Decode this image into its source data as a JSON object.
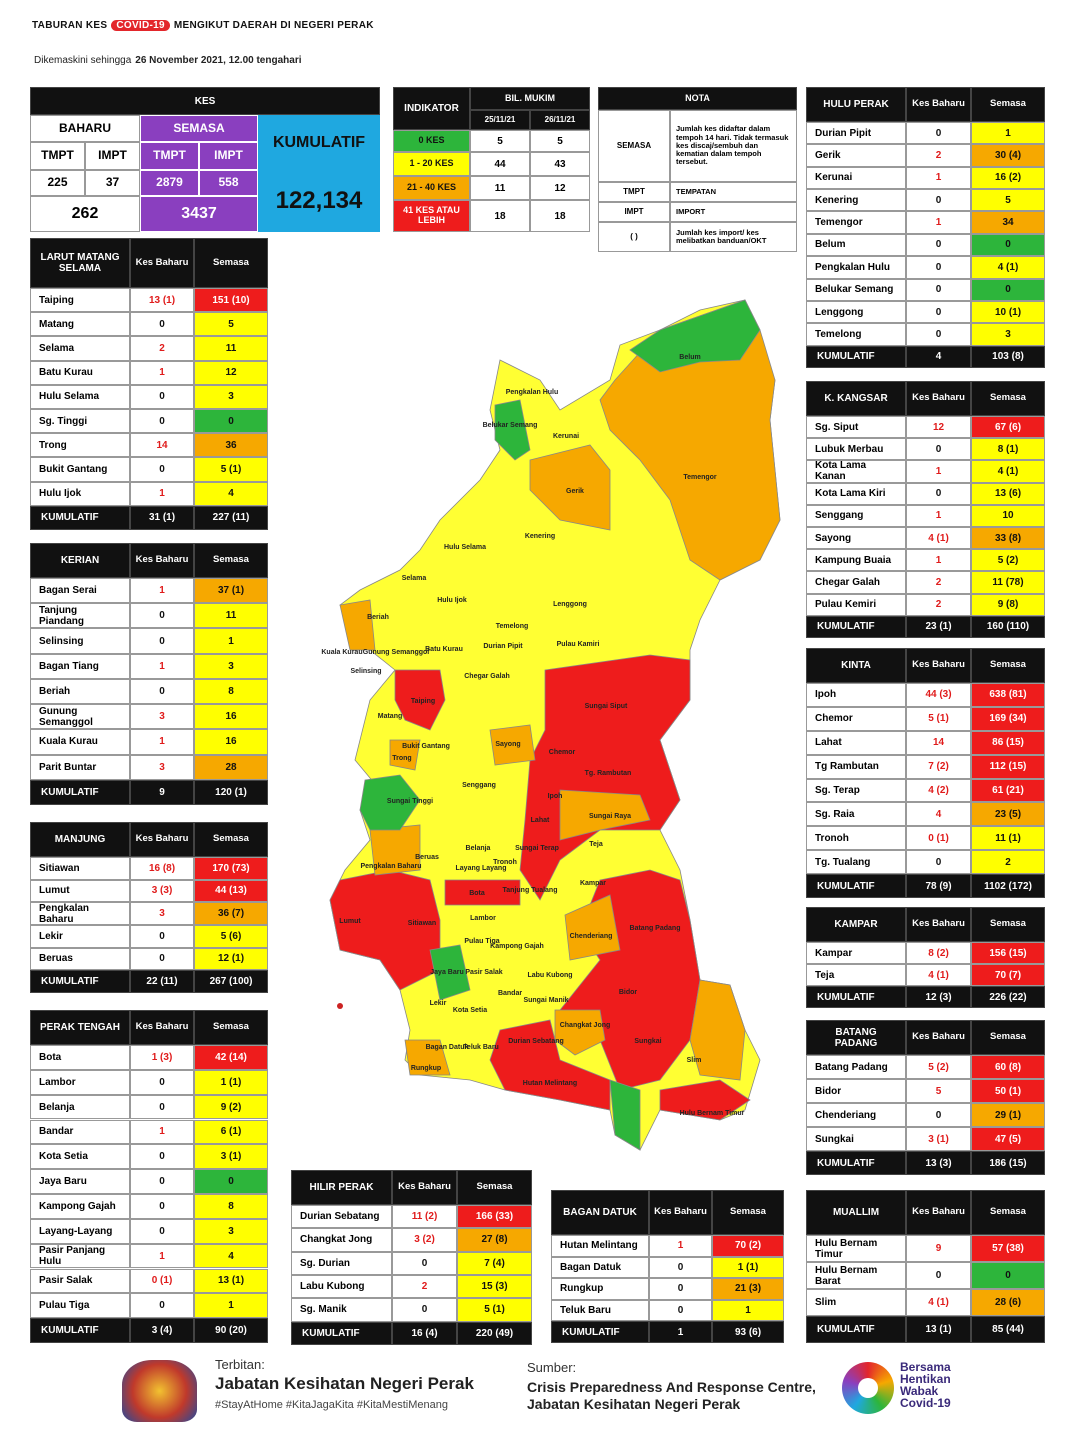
{
  "header": {
    "title": [
      "TABURAN KES",
      "COVID-19",
      "MENGIKUT DAERAH DI NEGERI PERAK"
    ],
    "subtitle": [
      "Dikemaskini sehingga",
      "26 November 2021, 12.00 tengahari"
    ]
  },
  "kes": {
    "title": "KES",
    "baharu": "BAHARU",
    "semasa": "SEMASA",
    "kumulatif": "KUMULATIF",
    "cols": [
      "TMPT",
      "IMPT",
      "TMPT",
      "IMPT"
    ],
    "values": [
      225,
      37,
      2879,
      558
    ],
    "total_baharu": 262,
    "total_semasa": 3437,
    "total_kumulatif": "122,134"
  },
  "indikator": {
    "title": "INDIKATOR",
    "bil": "BIL. MUKIM",
    "dates": [
      "25/11/21",
      "26/11/21"
    ],
    "rows": [
      [
        "0 KES",
        5,
        5,
        "g"
      ],
      [
        "1 - 20 KES",
        44,
        43,
        "y"
      ],
      [
        "21 - 40 KES",
        11,
        12,
        "o"
      ],
      [
        "41 KES ATAU LEBIH",
        18,
        18,
        "r"
      ]
    ]
  },
  "nota": {
    "title": "NOTA",
    "rows": [
      [
        "SEMASA",
        "Jumlah kes didaftar dalam tempoh 14 hari. Tidak termasuk kes discaj/sembuh dan kematian dalam tempoh tersebut."
      ],
      [
        "TMPT",
        "TEMPATAN"
      ],
      [
        "IMPT",
        "IMPORT"
      ],
      [
        "( )",
        "Jumlah kes import/ kes melibatkan banduan/OKT"
      ]
    ]
  },
  "zone_colors": {
    "g": "#2db53b",
    "y": "#ffff00",
    "o": "#f6a800",
    "r": "#ee1c1c"
  },
  "labels": {
    "kes_baharu": "Kes Baharu",
    "semasa": "Semasa",
    "kumulatif": "KUMULATIF"
  },
  "districts": [
    {
      "title": "HULU PERAK",
      "rows": [
        [
          "Durian Pipit",
          0,
          1,
          "y"
        ],
        [
          "Gerik",
          2,
          "30 (4)",
          "o"
        ],
        [
          "Kerunai",
          1,
          "16 (2)",
          "y"
        ],
        [
          "Kenering",
          0,
          5,
          "y"
        ],
        [
          "Temengor",
          1,
          34,
          "o"
        ],
        [
          "Belum",
          0,
          0,
          "g"
        ],
        [
          "Pengkalan Hulu",
          0,
          "4 (1)",
          "y"
        ],
        [
          "Belukar Semang",
          0,
          0,
          "g"
        ],
        [
          "Lenggong",
          0,
          "10 (1)",
          "y"
        ],
        [
          "Temelong",
          0,
          3,
          "y"
        ]
      ],
      "total": [
        4,
        "103 (8)"
      ]
    },
    {
      "title": "LARUT MATANG SELAMA",
      "rows": [
        [
          "Taiping",
          "13 (1)",
          "151 (10)",
          "r"
        ],
        [
          "Matang",
          0,
          5,
          "y"
        ],
        [
          "Selama",
          2,
          11,
          "y"
        ],
        [
          "Batu Kurau",
          1,
          12,
          "y"
        ],
        [
          "Hulu Selama",
          0,
          3,
          "y"
        ],
        [
          "Sg. Tinggi",
          0,
          0,
          "g"
        ],
        [
          "Trong",
          14,
          36,
          "o"
        ],
        [
          "Bukit Gantang",
          0,
          "5 (1)",
          "y"
        ],
        [
          "Hulu Ijok",
          1,
          4,
          "y"
        ]
      ],
      "total": [
        "31 (1)",
        "227 (11)"
      ]
    },
    {
      "title": "KERIAN",
      "rows": [
        [
          "Bagan Serai",
          1,
          "37 (1)",
          "o"
        ],
        [
          "Tanjung Piandang",
          0,
          11,
          "y"
        ],
        [
          "Selinsing",
          0,
          1,
          "y"
        ],
        [
          "Bagan Tiang",
          1,
          3,
          "y"
        ],
        [
          "Beriah",
          0,
          8,
          "y"
        ],
        [
          "Gunung Semanggol",
          3,
          16,
          "y"
        ],
        [
          "Kuala Kurau",
          1,
          16,
          "y"
        ],
        [
          "Parit Buntar",
          3,
          28,
          "o"
        ]
      ],
      "total": [
        9,
        "120 (1)"
      ]
    },
    {
      "title": "MANJUNG",
      "rows": [
        [
          "Sitiawan",
          "16 (8)",
          "170 (73)",
          "r"
        ],
        [
          "Lumut",
          "3 (3)",
          "44 (13)",
          "r"
        ],
        [
          "Pengkalan Baharu",
          3,
          "36 (7)",
          "o"
        ],
        [
          "Lekir",
          0,
          "5 (6)",
          "y"
        ],
        [
          "Beruas",
          0,
          "12 (1)",
          "y"
        ]
      ],
      "total": [
        "22 (11)",
        "267 (100)"
      ]
    },
    {
      "title": "PERAK TENGAH",
      "rows": [
        [
          "Bota",
          "1 (3)",
          "42 (14)",
          "r"
        ],
        [
          "Lambor",
          0,
          "1 (1)",
          "y"
        ],
        [
          "Belanja",
          0,
          "9 (2)",
          "y"
        ],
        [
          "Bandar",
          1,
          "6 (1)",
          "y"
        ],
        [
          "Kota Setia",
          0,
          "3 (1)",
          "y"
        ],
        [
          "Jaya Baru",
          0,
          0,
          "g"
        ],
        [
          "Kampong Gajah",
          0,
          8,
          "y"
        ],
        [
          "Layang-Layang",
          0,
          3,
          "y"
        ],
        [
          "Pasir Panjang Hulu",
          1,
          4,
          "y"
        ],
        [
          "Pasir Salak",
          "0 (1)",
          "13 (1)",
          "y"
        ],
        [
          "Pulau Tiga",
          0,
          1,
          "y"
        ]
      ],
      "total": [
        "3 (4)",
        "90 (20)"
      ]
    },
    {
      "title": "HILIR PERAK",
      "rows": [
        [
          "Durian Sebatang",
          "11 (2)",
          "166 (33)",
          "r"
        ],
        [
          "Changkat Jong",
          "3 (2)",
          "27 (8)",
          "o"
        ],
        [
          "Sg. Durian",
          0,
          "7 (4)",
          "y"
        ],
        [
          "Labu Kubong",
          2,
          "15 (3)",
          "y"
        ],
        [
          "Sg. Manik",
          0,
          "5 (1)",
          "y"
        ]
      ],
      "total": [
        "16 (4)",
        "220 (49)"
      ]
    },
    {
      "title": "BAGAN DATUK",
      "rows": [
        [
          "Hutan Melintang",
          1,
          "70 (2)",
          "r"
        ],
        [
          "Bagan Datuk",
          0,
          "1 (1)",
          "y"
        ],
        [
          "Rungkup",
          0,
          "21 (3)",
          "o"
        ],
        [
          "Teluk Baru",
          0,
          1,
          "y"
        ]
      ],
      "total": [
        1,
        "93 (6)"
      ]
    },
    {
      "title": "K. KANGSAR",
      "rows": [
        [
          "Sg. Siput",
          12,
          "67 (6)",
          "r"
        ],
        [
          "Lubuk Merbau",
          0,
          "8 (1)",
          "y"
        ],
        [
          "Kota Lama Kanan",
          1,
          "4 (1)",
          "y"
        ],
        [
          "Kota Lama Kiri",
          0,
          "13 (6)",
          "y"
        ],
        [
          "Senggang",
          1,
          10,
          "y"
        ],
        [
          "Sayong",
          "4 (1)",
          "33 (8)",
          "o"
        ],
        [
          "Kampung Buaia",
          1,
          "5 (2)",
          "y"
        ],
        [
          "Chegar Galah",
          2,
          "11 (78)",
          "y"
        ],
        [
          "Pulau Kemiri",
          2,
          "9 (8)",
          "y"
        ]
      ],
      "total": [
        "23 (1)",
        "160 (110)"
      ]
    },
    {
      "title": "KINTA",
      "rows": [
        [
          "Ipoh",
          "44 (3)",
          "638 (81)",
          "r"
        ],
        [
          "Chemor",
          "5 (1)",
          "169 (34)",
          "r"
        ],
        [
          "Lahat",
          14,
          "86 (15)",
          "r"
        ],
        [
          "Tg Rambutan",
          "7 (2)",
          "112 (15)",
          "r"
        ],
        [
          "Sg. Terap",
          "4 (2)",
          "61 (21)",
          "r"
        ],
        [
          "Sg. Raia",
          4,
          "23 (5)",
          "o"
        ],
        [
          "Tronoh",
          "0 (1)",
          "11 (1)",
          "y"
        ],
        [
          "Tg. Tualang",
          0,
          2,
          "y"
        ]
      ],
      "total": [
        "78 (9)",
        "1102 (172)"
      ]
    },
    {
      "title": "KAMPAR",
      "rows": [
        [
          "Kampar",
          "8 (2)",
          "156 (15)",
          "r"
        ],
        [
          "Teja",
          "4 (1)",
          "70 (7)",
          "r"
        ]
      ],
      "total": [
        "12 (3)",
        "226 (22)"
      ]
    },
    {
      "title": "BATANG PADANG",
      "rows": [
        [
          "Batang Padang",
          "5 (2)",
          "60 (8)",
          "r"
        ],
        [
          "Bidor",
          5,
          "50 (1)",
          "r"
        ],
        [
          "Chenderiang",
          0,
          "29 (1)",
          "o"
        ],
        [
          "Sungkai",
          "3 (1)",
          "47 (5)",
          "r"
        ]
      ],
      "total": [
        "13 (3)",
        "186 (15)"
      ]
    },
    {
      "title": "MUALLIM",
      "rows": [
        [
          "Hulu Bernam Timur",
          9,
          "57 (38)",
          "r"
        ],
        [
          "Hulu Bernam Barat",
          0,
          0,
          "g"
        ],
        [
          "Slim",
          "4 (1)",
          "28 (6)",
          "o"
        ]
      ],
      "total": [
        "13 (1)",
        "85 (44)"
      ]
    }
  ],
  "map": {
    "labels": [
      "Belum",
      "Pengkalan Hulu",
      "Belukar Semang",
      "Kerunai",
      "Temengor",
      "Gerik",
      "Kenering",
      "Hulu Selama",
      "Selama",
      "Hulu Ijok",
      "Lenggong",
      "Temelong",
      "Beriah",
      "Gunung Semanggol",
      "Batu Kurau",
      "Durian Pipit",
      "Pulau Kamiri",
      "Chegar Galah",
      "Taiping",
      "Matang",
      "Bukit Gantang",
      "Trong",
      "Sungai Siput",
      "Sayong",
      "Chemor",
      "Tg. Rambutan",
      "Senggang",
      "Sungai Tinggi",
      "Ipoh",
      "Sungai Raya",
      "Lahat",
      "Teja",
      "Belanja",
      "Beruas",
      "Pengkalan Baharu",
      "Kampar",
      "Bota",
      "Lambor",
      "Lumut",
      "Sitiawan",
      "Chenderiang",
      "Batang Padang",
      "Pulau Tiga",
      "Jaya Baru",
      "Bidor",
      "Bandar",
      "Lekir",
      "Sungkai",
      "Durian Sebatang",
      "Changkat Jong",
      "Bagan Datuk",
      "Teluk Baru",
      "Slim",
      "Rungkup",
      "Hutan Melintang",
      "Hulu Bernam Timur",
      "Selinsing",
      "Kuala Kurau",
      "Kota Setia",
      "Pasir Salak",
      "Labu Kubong",
      "Sungai Manik",
      "Layang Layang",
      "Kampong Gajah",
      "Tanjung Tualang",
      "Sungai Terap",
      "Tronoh"
    ]
  },
  "footer": {
    "terbitan": "Terbitan:",
    "publisher": "Jabatan Kesihatan Negeri Perak",
    "hashtags": "#StayAtHome #KitaJagaKita #KitaMestiMenang",
    "sumber": "Sumber:",
    "source": [
      "Crisis Preparedness And Response Centre,",
      "Jabatan Kesihatan Negeri Perak"
    ],
    "slogan": [
      "Bersama",
      "Hentikan",
      "Wabak",
      "Covid-19"
    ]
  }
}
